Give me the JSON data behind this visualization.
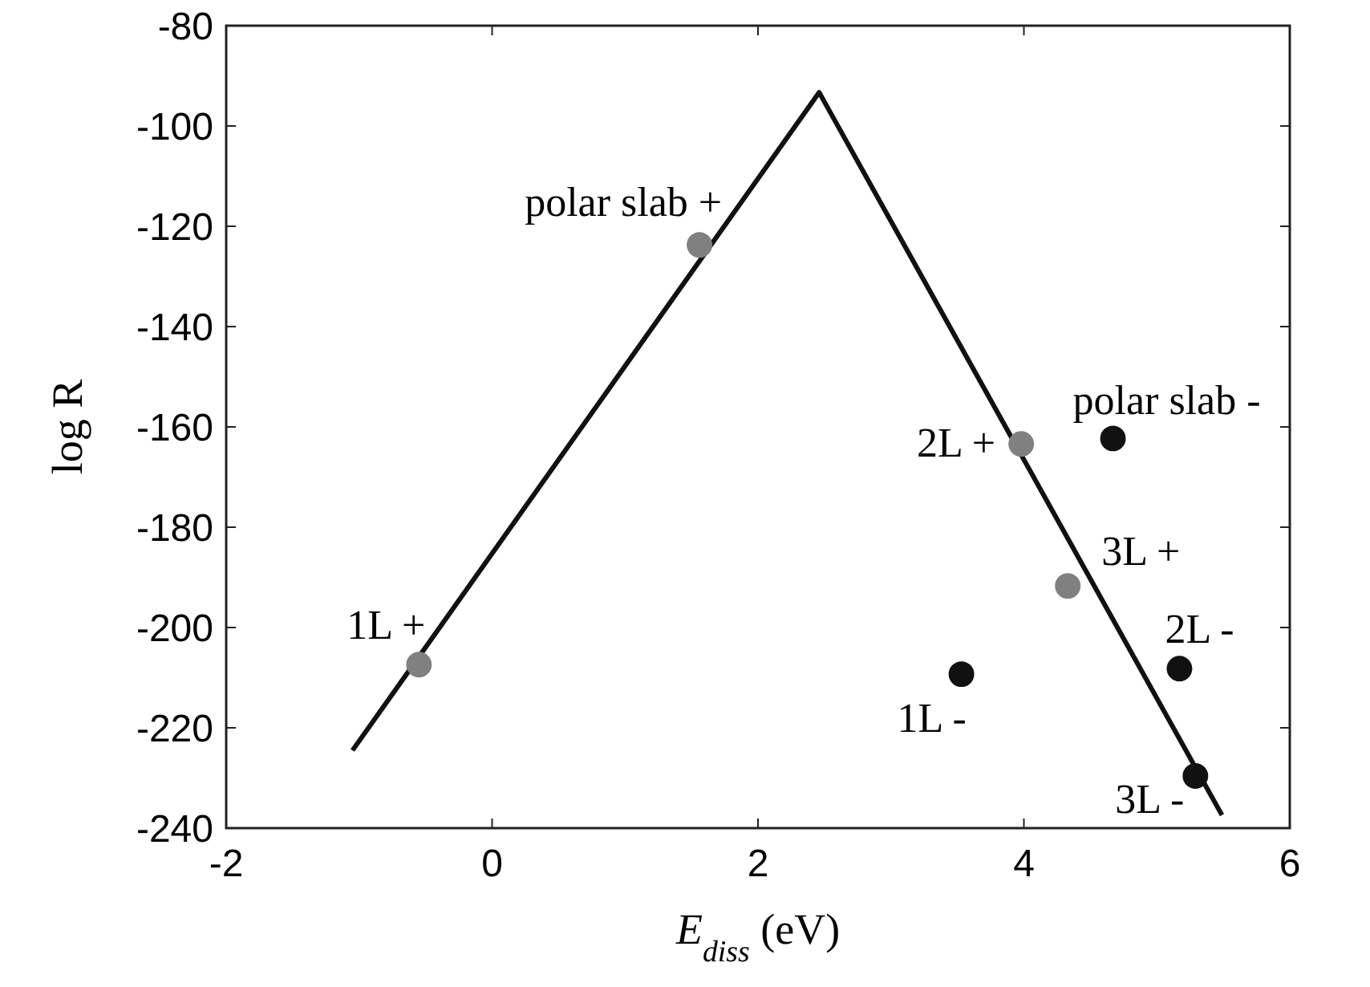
{
  "chart_data": {
    "type": "scatter",
    "xlabel": "E$_{diss}$ (eV)",
    "ylabel": "log R",
    "xlim": [
      -2,
      6
    ],
    "xticks": [
      -2,
      0,
      2,
      4,
      6
    ],
    "ylim": [
      -240,
      -80
    ],
    "yticks": [
      -240,
      -220,
      -200,
      -180,
      -160,
      -140,
      -120,
      -100,
      -80
    ],
    "grid": false,
    "marker": "circle",
    "series": [
      {
        "type": "line",
        "color": "#111111",
        "x": [
          -1.05,
          2.46,
          5.49
        ],
        "values": [
          -224.5,
          -93.3,
          -237.4
        ],
        "marker": "none",
        "line_style": "solid"
      },
      {
        "color": "#808080",
        "x": [
          -0.55,
          1.56,
          3.98,
          4.33
        ],
        "values": [
          -207.4,
          -123.7,
          -163.4,
          -191.7
        ]
      },
      {
        "color": "#111111",
        "x": [
          3.53,
          4.67,
          5.17,
          5.29
        ],
        "values": [
          -209.3,
          -162.3,
          -208.2,
          -229.6
        ]
      }
    ],
    "annotations": [
      {
        "text": "1L +",
        "x": -0.55,
        "y": -207.4
      },
      {
        "text": "polar slab +",
        "x": 1.56,
        "y": -123.7
      },
      {
        "text": "2L +",
        "x": 3.98,
        "y": -163.4
      },
      {
        "text": "3L +",
        "x": 4.33,
        "y": -191.7
      },
      {
        "text": "1L -",
        "x": 3.53,
        "y": -209.3
      },
      {
        "text": "polar slab -",
        "x": 4.67,
        "y": -162.3
      },
      {
        "text": "2L -",
        "x": 5.17,
        "y": -208.2
      },
      {
        "text": "3L -",
        "x": 5.29,
        "y": -229.6
      }
    ]
  }
}
